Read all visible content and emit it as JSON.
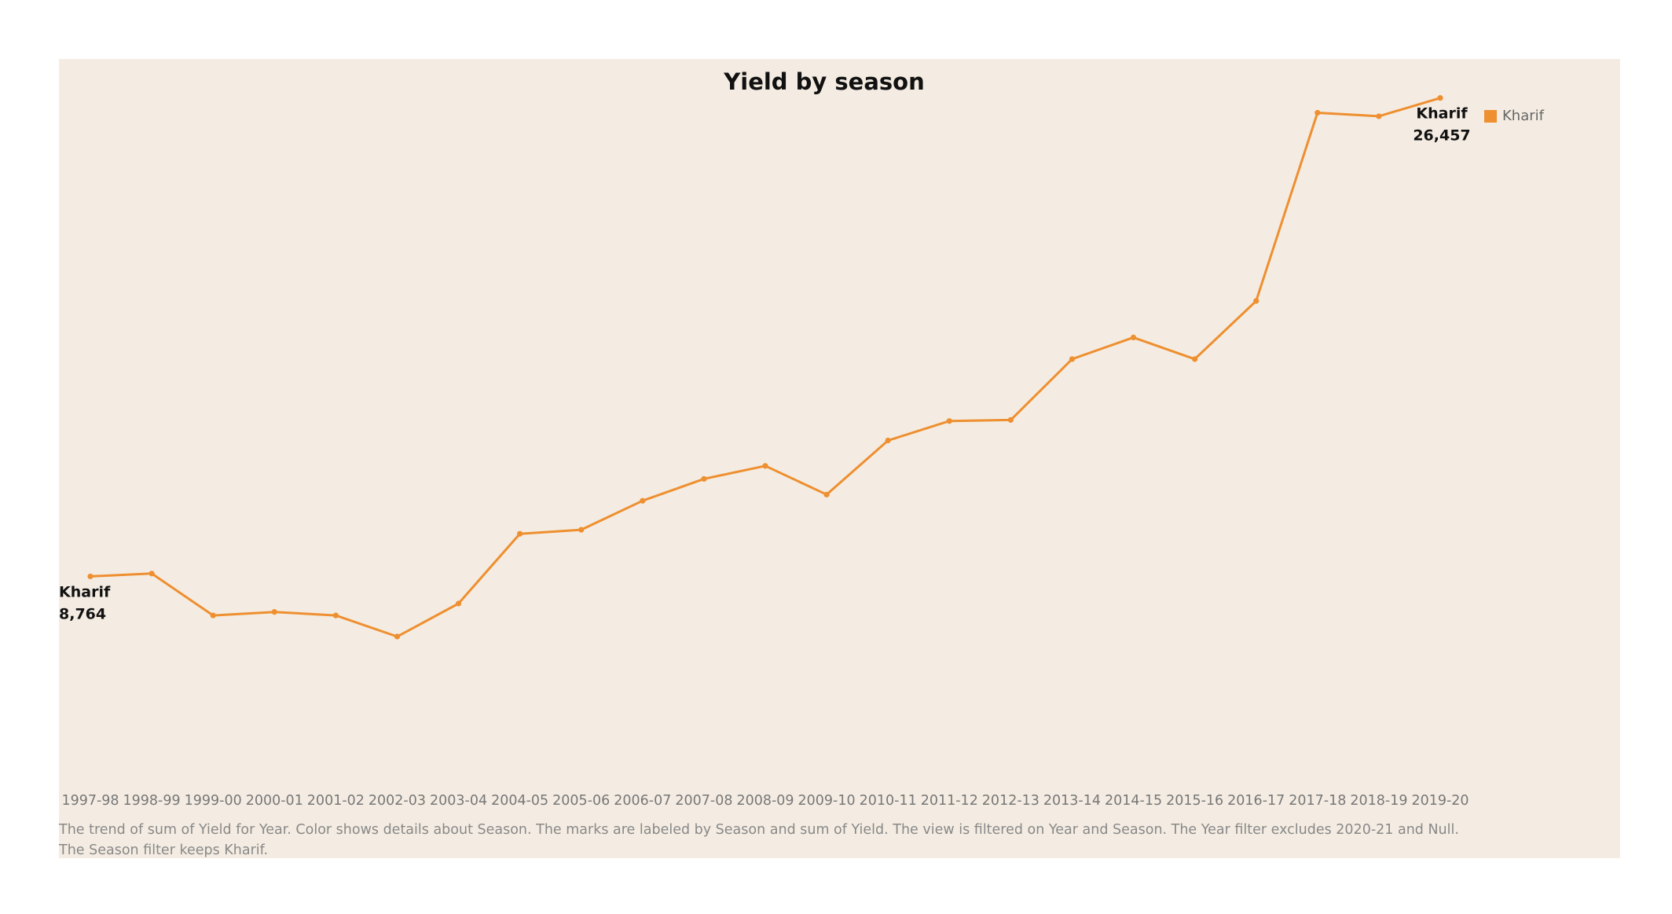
{
  "accent_color": "#ee8f30",
  "chart_data": {
    "type": "line",
    "title": "Yield by season",
    "categories": [
      "1997-98",
      "1998-99",
      "1999-00",
      "2000-01",
      "2001-02",
      "2002-03",
      "2003-04",
      "2004-05",
      "2005-06",
      "2006-07",
      "2007-08",
      "2008-09",
      "2009-10",
      "2010-11",
      "2011-12",
      "2012-13",
      "2013-14",
      "2014-15",
      "2015-16",
      "2016-17",
      "2017-18",
      "2018-19",
      "2019-20"
    ],
    "series": [
      {
        "name": "Kharif",
        "color": "#ee8f30",
        "values": [
          8764,
          8870,
          7320,
          7450,
          7320,
          6540,
          7760,
          10340,
          10490,
          11560,
          12370,
          12850,
          11790,
          13790,
          14510,
          14550,
          16800,
          17600,
          16800,
          18950,
          25910,
          25780,
          26457
        ]
      }
    ],
    "point_labels": [
      {
        "index": 0,
        "series_label": "Kharif",
        "value_label": "8,764"
      },
      {
        "index": 22,
        "series_label": "Kharif",
        "value_label": "26,457"
      }
    ],
    "ylim": [
      0,
      27900
    ],
    "xlabel": "",
    "ylabel": "",
    "grid": false,
    "y_axis_visible": false,
    "legend_position": "top-right",
    "legend": [
      {
        "label": "Kharif",
        "color": "#ee8f30"
      }
    ],
    "caption_lines": [
      "The trend of sum of Yield for Year.  Color shows details about Season.  The marks are labeled by Season and sum of Yield. The view is filtered on Year and Season. The Year filter excludes 2020-21 and Null.",
      "The Season filter keeps Kharif."
    ]
  }
}
